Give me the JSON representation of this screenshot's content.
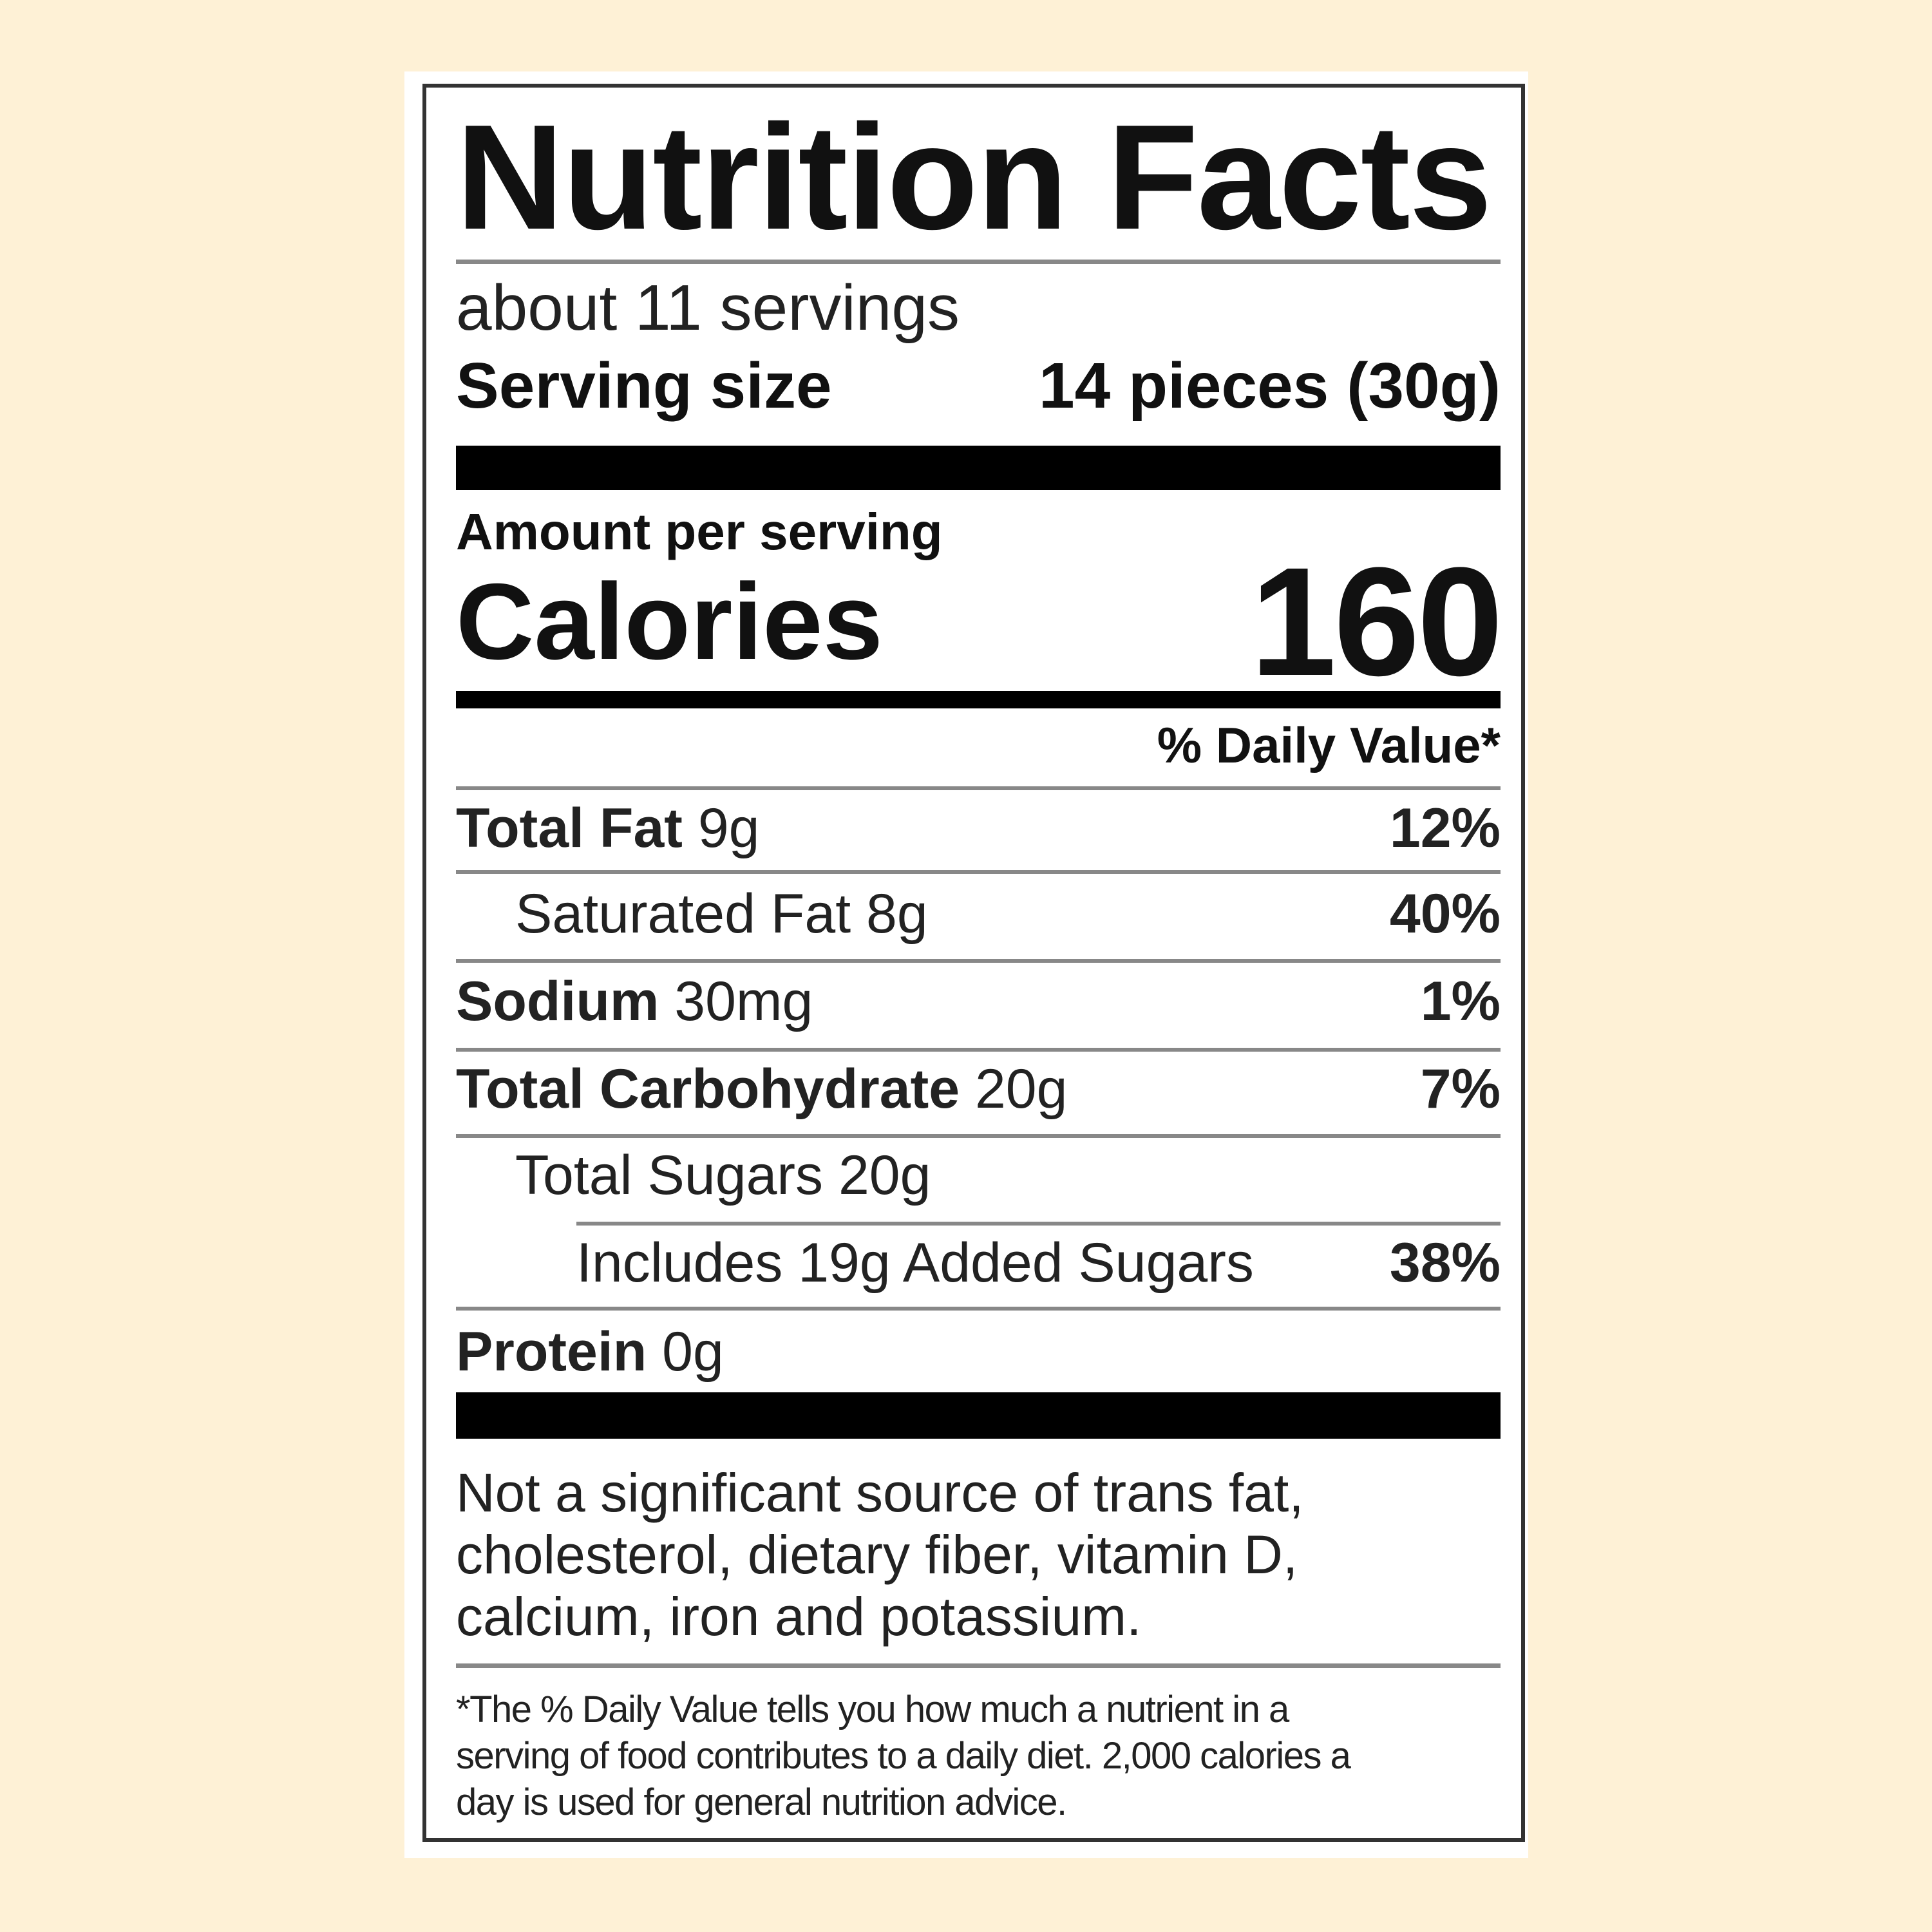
{
  "title": "Nutrition Facts",
  "servings": "about 11 servings",
  "serving_size": {
    "label": "Serving size",
    "value": "14 pieces (30g)"
  },
  "amount_per_serving": "Amount per serving",
  "calories": {
    "label": "Calories",
    "value": "160"
  },
  "daily_value_header": "% Daily Value*",
  "nutrients": [
    {
      "name": "Total Fat",
      "amount": "9g",
      "dv": "12%"
    },
    {
      "name": "Saturated Fat",
      "amount": "8g",
      "dv": "40%"
    },
    {
      "name": "Sodium",
      "amount": "30mg",
      "dv": "1%"
    },
    {
      "name": "Total Carbohydrate",
      "amount": "20g",
      "dv": "7%"
    },
    {
      "name": "Total Sugars",
      "amount": "20g",
      "dv": ""
    },
    {
      "name": "Includes 19g Added Sugars",
      "amount": "",
      "dv": "38%"
    },
    {
      "name": "Protein",
      "amount": "0g",
      "dv": ""
    }
  ],
  "not_significant": [
    "Not a significant source of trans fat,",
    "cholesterol, dietary fiber, vitamin D,",
    "calcium, iron and potassium."
  ],
  "footnote": [
    "*The % Daily Value tells you how much a nutrient in a",
    "serving of food contributes to a daily diet. 2,000 calories a",
    "day is used for general nutrition advice."
  ]
}
